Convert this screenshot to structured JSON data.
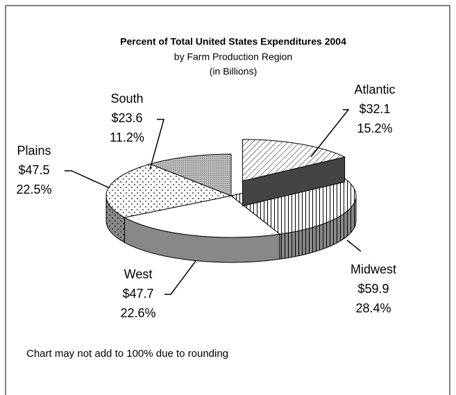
{
  "chart_data": {
    "type": "pie3d",
    "title": "Percent of Total United States Expenditures 2004",
    "subtitle": "by Farm Production Region",
    "unit_note": "(in Billions)",
    "categories": [
      "Atlantic",
      "Midwest",
      "West",
      "Plains",
      "South"
    ],
    "values": [
      15.2,
      28.4,
      22.6,
      22.5,
      11.2
    ],
    "value_labels": [
      "15.2%",
      "28.4%",
      "22.6%",
      "22.5%",
      "11.2%"
    ],
    "amounts": [
      32.1,
      59.9,
      47.7,
      47.5,
      23.6
    ],
    "amount_labels": [
      "$32.1",
      "$59.9",
      "$47.7",
      "$47.5",
      "$23.6"
    ],
    "exploded": "Atlantic",
    "footnote": "Chart may not add to 100% due to rounding"
  }
}
